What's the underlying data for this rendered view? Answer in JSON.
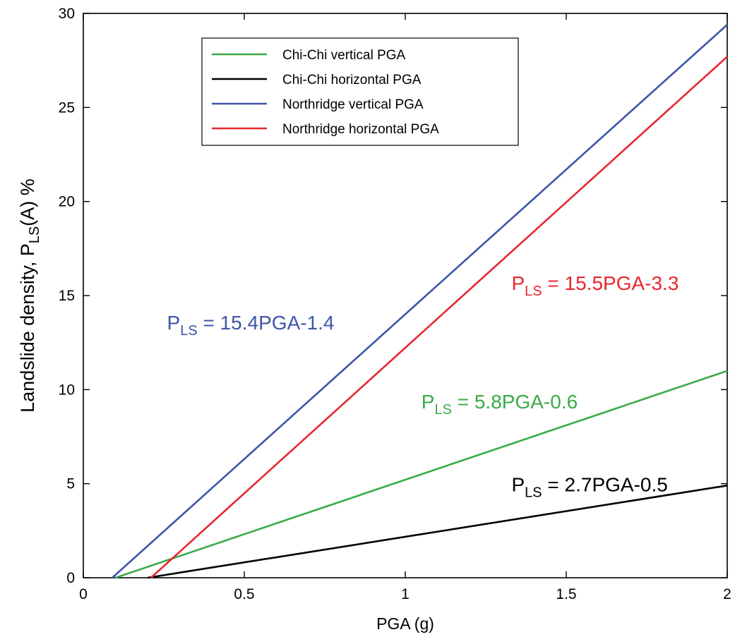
{
  "chart_data": {
    "type": "line",
    "xlabel": "PGA (g)",
    "ylabel": "Landslide density, P",
    "ylabel_sub": "LS",
    "ylabel_suffix": "(A) %",
    "xlim": [
      0,
      2
    ],
    "ylim": [
      0,
      30
    ],
    "xticks": [
      0,
      0.5,
      1,
      1.5,
      2
    ],
    "xtick_labels": [
      "0",
      "0.5",
      "1",
      "1.5",
      "2"
    ],
    "yticks": [
      0,
      5,
      10,
      15,
      20,
      25,
      30
    ],
    "ytick_labels": [
      "0",
      "5",
      "10",
      "15",
      "20",
      "25",
      "30"
    ],
    "grid": false,
    "legend_position": "top-center",
    "series": [
      {
        "name": "Chi-Chi vertical PGA",
        "color": "#3aab48",
        "x": [
          0.1,
          2
        ],
        "y": [
          0,
          11.0
        ]
      },
      {
        "name": "Chi-Chi horizontal PGA",
        "color": "#000000",
        "x": [
          0.2,
          2
        ],
        "y": [
          0,
          4.9
        ]
      },
      {
        "name": "Northridge vertical PGA",
        "color": "#3d55a8",
        "x": [
          0.09,
          2
        ],
        "y": [
          0,
          29.4
        ]
      },
      {
        "name": "Northridge horizontal PGA",
        "color": "#e8262f",
        "x": [
          0.21,
          2
        ],
        "y": [
          0,
          27.7
        ]
      }
    ],
    "annotations": [
      {
        "series": 2,
        "prefix": "P",
        "sub": "LS",
        "text": " = 15.4PGA-1.4",
        "x": 0.26,
        "y": 13.2,
        "color": "#3d55a8"
      },
      {
        "series": 3,
        "prefix": "P",
        "sub": "LS",
        "text": " = 15.5PGA-3.3",
        "x": 1.33,
        "y": 15.3,
        "color": "#e8262f"
      },
      {
        "series": 0,
        "prefix": "P",
        "sub": "LS",
        "text": " = 5.8PGA-0.6",
        "x": 1.05,
        "y": 9.0,
        "color": "#3aab48"
      },
      {
        "series": 1,
        "prefix": "P",
        "sub": "LS",
        "text": " = 2.7PGA-0.5",
        "x": 1.33,
        "y": 4.6,
        "color": "#000000"
      }
    ]
  }
}
